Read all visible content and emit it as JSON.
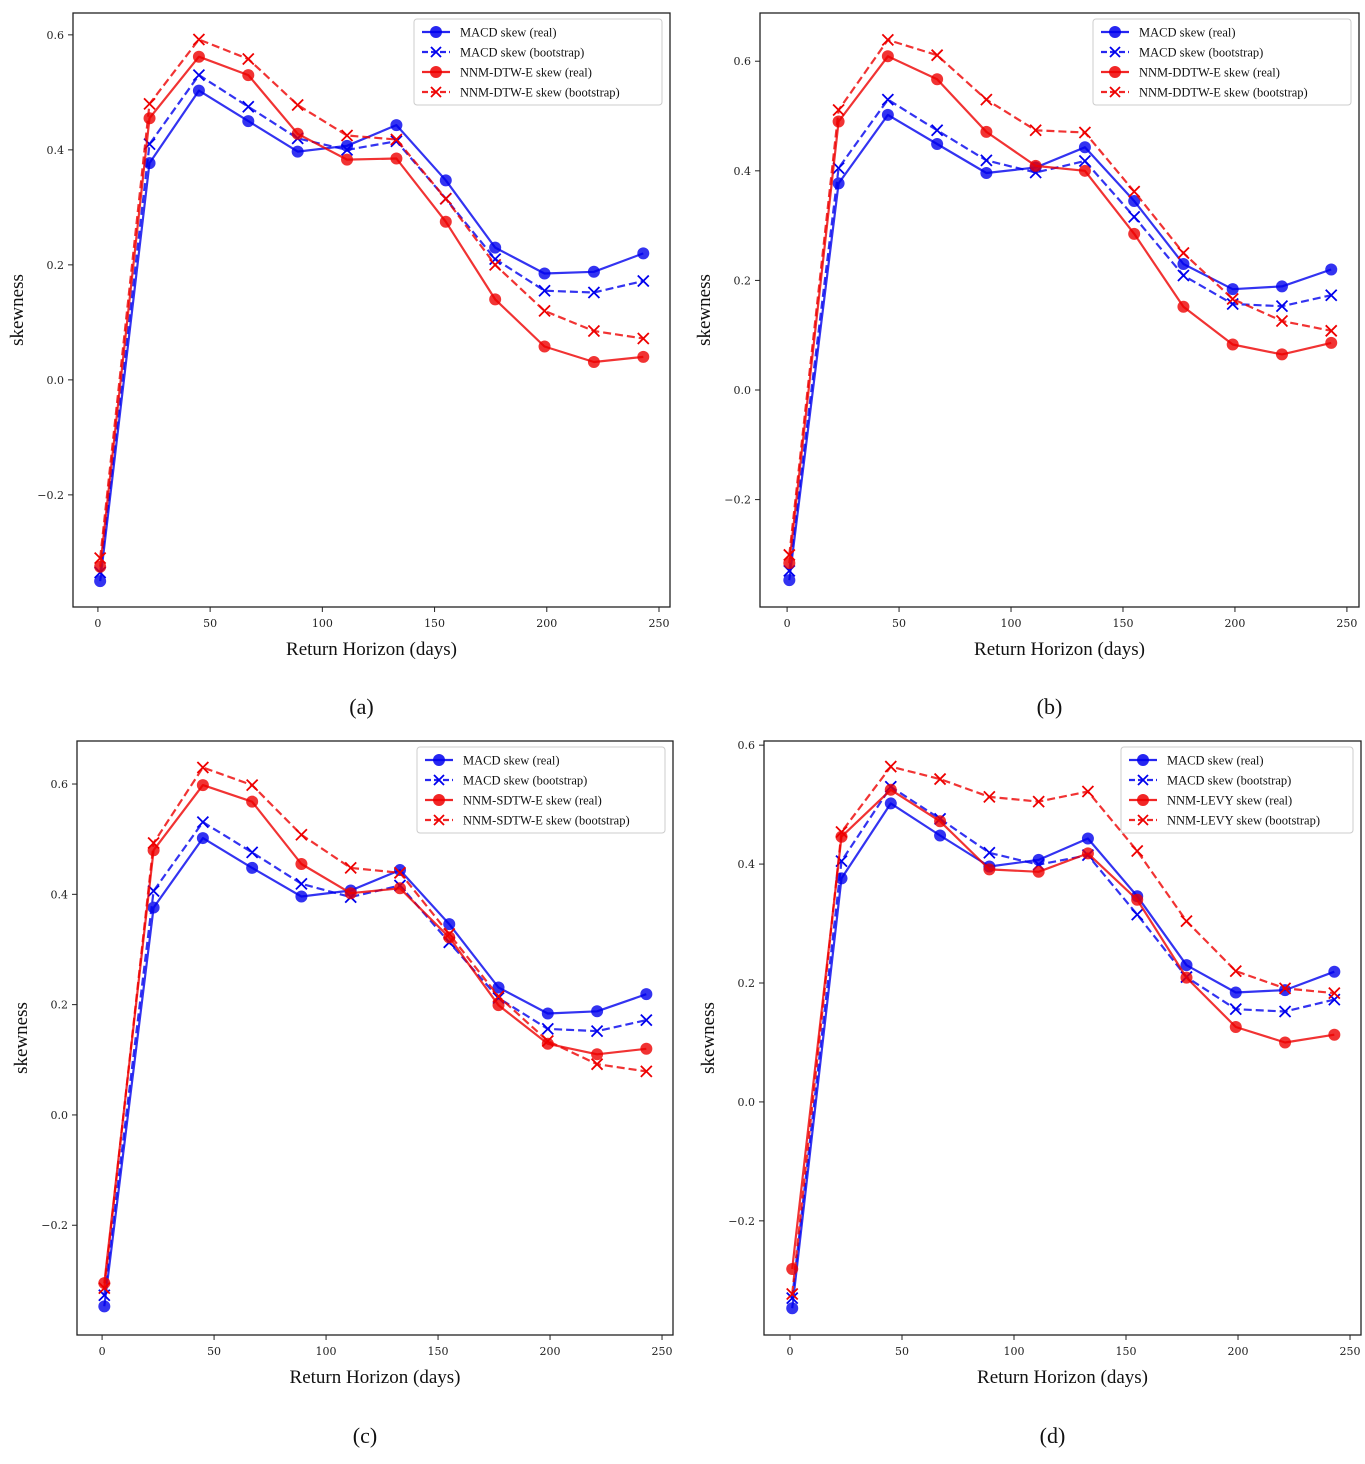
{
  "figure": {
    "panel_count": 4
  },
  "colors": {
    "macd": "#0000ee",
    "nnm": "#ee0000",
    "frame": "#222222"
  },
  "chart_data": [
    {
      "id": "a",
      "type": "line",
      "caption": "(a)",
      "xlabel": "Return Horizon (days)",
      "ylabel": "skewness",
      "xlim": [
        -11.1,
        254.9
      ],
      "ylim": [
        -0.395,
        0.638
      ],
      "xticks": [
        0,
        50,
        100,
        150,
        200,
        250
      ],
      "xtick_labels": [
        "0",
        "50",
        "100",
        "150",
        "200",
        "250"
      ],
      "yticks": [
        -0.2,
        0.0,
        0.2,
        0.4,
        0.6
      ],
      "ytick_labels": [
        "−0.2",
        "0.0",
        "0.2",
        "0.4",
        "0.6"
      ],
      "grid": false,
      "legend_position": "top-right",
      "x": [
        1,
        23,
        45,
        67,
        89,
        111,
        133,
        155,
        177,
        199,
        221,
        243
      ],
      "series": [
        {
          "name": "MACD skew (real)",
          "color": "macd",
          "style": "solid",
          "marker": "circle",
          "values": [
            -0.35,
            0.377,
            0.503,
            0.45,
            0.397,
            0.407,
            0.443,
            0.347,
            0.23,
            0.185,
            0.188,
            0.22
          ]
        },
        {
          "name": "MACD skew (bootstrap)",
          "color": "macd",
          "style": "dashed",
          "marker": "x",
          "values": [
            -0.335,
            0.41,
            0.53,
            0.475,
            0.42,
            0.4,
            0.415,
            0.315,
            0.21,
            0.155,
            0.152,
            0.172
          ]
        },
        {
          "name": "NNM-DTW-E skew (real)",
          "color": "nnm",
          "style": "solid",
          "marker": "circle",
          "values": [
            -0.325,
            0.455,
            0.562,
            0.53,
            0.428,
            0.383,
            0.385,
            0.275,
            0.14,
            0.058,
            0.031,
            0.04
          ]
        },
        {
          "name": "NNM-DTW-E skew (bootstrap)",
          "color": "nnm",
          "style": "dashed",
          "marker": "x",
          "values": [
            -0.31,
            0.48,
            0.592,
            0.558,
            0.478,
            0.425,
            0.418,
            0.315,
            0.2,
            0.12,
            0.085,
            0.072
          ]
        }
      ]
    },
    {
      "id": "b",
      "type": "line",
      "caption": "(b)",
      "xlabel": "Return Horizon (days)",
      "ylabel": "skewness",
      "xlim": [
        -12.1,
        255.4
      ],
      "ylim": [
        -0.396,
        0.688
      ],
      "xticks": [
        0,
        50,
        100,
        150,
        200,
        250
      ],
      "xtick_labels": [
        "0",
        "50",
        "100",
        "150",
        "200",
        "250"
      ],
      "yticks": [
        -0.2,
        0.0,
        0.2,
        0.4,
        0.6
      ],
      "ytick_labels": [
        "−0.2",
        "0.0",
        "0.2",
        "0.4",
        "0.6"
      ],
      "grid": false,
      "legend_position": "top-right",
      "x": [
        1,
        23,
        45,
        67,
        89,
        111,
        133,
        155,
        177,
        199,
        221,
        243
      ],
      "series": [
        {
          "name": "MACD skew (real)",
          "color": "macd",
          "style": "solid",
          "marker": "circle",
          "values": [
            -0.347,
            0.377,
            0.502,
            0.449,
            0.396,
            0.406,
            0.443,
            0.345,
            0.23,
            0.184,
            0.189,
            0.22
          ]
        },
        {
          "name": "MACD skew (bootstrap)",
          "color": "macd",
          "style": "dashed",
          "marker": "x",
          "values": [
            -0.33,
            0.405,
            0.53,
            0.474,
            0.419,
            0.397,
            0.418,
            0.316,
            0.209,
            0.157,
            0.153,
            0.173
          ]
        },
        {
          "name": "NNM-DDTW-E skew (real)",
          "color": "nnm",
          "style": "solid",
          "marker": "circle",
          "values": [
            -0.316,
            0.49,
            0.609,
            0.567,
            0.471,
            0.409,
            0.4,
            0.285,
            0.152,
            0.083,
            0.065,
            0.086
          ]
        },
        {
          "name": "NNM-DDTW-E skew (bootstrap)",
          "color": "nnm",
          "style": "dashed",
          "marker": "x",
          "values": [
            -0.301,
            0.511,
            0.639,
            0.611,
            0.53,
            0.474,
            0.47,
            0.362,
            0.25,
            0.166,
            0.126,
            0.108
          ]
        }
      ]
    },
    {
      "id": "c",
      "type": "line",
      "caption": "(c)",
      "xlabel": "Return Horizon (days)",
      "ylabel": "skewness",
      "xlim": [
        -11.2,
        254.9
      ],
      "ylim": [
        -0.399,
        0.678
      ],
      "xticks": [
        0,
        50,
        100,
        150,
        200,
        250
      ],
      "xtick_labels": [
        "0",
        "50",
        "100",
        "150",
        "200",
        "250"
      ],
      "yticks": [
        -0.2,
        0.0,
        0.2,
        0.4,
        0.6
      ],
      "ytick_labels": [
        "−0.2",
        "0.0",
        "0.2",
        "0.4",
        "0.6"
      ],
      "grid": false,
      "legend_position": "top-right",
      "x": [
        1,
        23,
        45,
        67,
        89,
        111,
        133,
        155,
        177,
        199,
        221,
        243
      ],
      "series": [
        {
          "name": "MACD skew (real)",
          "color": "macd",
          "style": "solid",
          "marker": "circle",
          "values": [
            -0.347,
            0.376,
            0.502,
            0.448,
            0.396,
            0.407,
            0.444,
            0.346,
            0.231,
            0.184,
            0.188,
            0.219
          ]
        },
        {
          "name": "MACD skew (bootstrap)",
          "color": "macd",
          "style": "dashed",
          "marker": "x",
          "values": [
            -0.327,
            0.406,
            0.531,
            0.476,
            0.419,
            0.395,
            0.416,
            0.313,
            0.212,
            0.156,
            0.152,
            0.172
          ]
        },
        {
          "name": "NNM-SDTW-E skew (real)",
          "color": "nnm",
          "style": "solid",
          "marker": "circle",
          "values": [
            -0.305,
            0.48,
            0.598,
            0.568,
            0.455,
            0.402,
            0.411,
            0.322,
            0.199,
            0.129,
            0.11,
            0.12
          ]
        },
        {
          "name": "NNM-SDTW-E skew (bootstrap)",
          "color": "nnm",
          "style": "dashed",
          "marker": "x",
          "values": [
            -0.314,
            0.493,
            0.63,
            0.598,
            0.508,
            0.448,
            0.439,
            0.328,
            0.215,
            0.134,
            0.092,
            0.079
          ]
        }
      ]
    },
    {
      "id": "d",
      "type": "line",
      "caption": "(d)",
      "xlabel": "Return Horizon (days)",
      "ylabel": "skewness",
      "xlim": [
        -11.6,
        254.9
      ],
      "ylim": [
        -0.392,
        0.607
      ],
      "xticks": [
        0,
        50,
        100,
        150,
        200,
        250
      ],
      "xtick_labels": [
        "0",
        "50",
        "100",
        "150",
        "200",
        "250"
      ],
      "yticks": [
        -0.2,
        0.0,
        0.2,
        0.4,
        0.6
      ],
      "ytick_labels": [
        "−0.2",
        "0.0",
        "0.2",
        "0.4",
        "0.6"
      ],
      "grid": false,
      "legend_position": "top-right",
      "x": [
        1,
        23,
        45,
        67,
        89,
        111,
        133,
        155,
        177,
        199,
        221,
        243
      ],
      "series": [
        {
          "name": "MACD skew (real)",
          "color": "macd",
          "style": "solid",
          "marker": "circle",
          "values": [
            -0.347,
            0.376,
            0.502,
            0.448,
            0.396,
            0.407,
            0.443,
            0.346,
            0.23,
            0.184,
            0.188,
            0.219
          ]
        },
        {
          "name": "MACD skew (bootstrap)",
          "color": "macd",
          "style": "dashed",
          "marker": "x",
          "values": [
            -0.33,
            0.405,
            0.53,
            0.476,
            0.419,
            0.399,
            0.415,
            0.315,
            0.21,
            0.156,
            0.152,
            0.172
          ]
        },
        {
          "name": "NNM-LEVY skew (real)",
          "color": "nnm",
          "style": "solid",
          "marker": "circle",
          "values": [
            -0.281,
            0.446,
            0.525,
            0.472,
            0.391,
            0.387,
            0.418,
            0.34,
            0.209,
            0.126,
            0.1,
            0.113
          ]
        },
        {
          "name": "NNM-LEVY skew (bootstrap)",
          "color": "nnm",
          "style": "dashed",
          "marker": "x",
          "values": [
            -0.323,
            0.454,
            0.564,
            0.543,
            0.513,
            0.505,
            0.522,
            0.422,
            0.304,
            0.22,
            0.191,
            0.183
          ]
        }
      ]
    }
  ]
}
